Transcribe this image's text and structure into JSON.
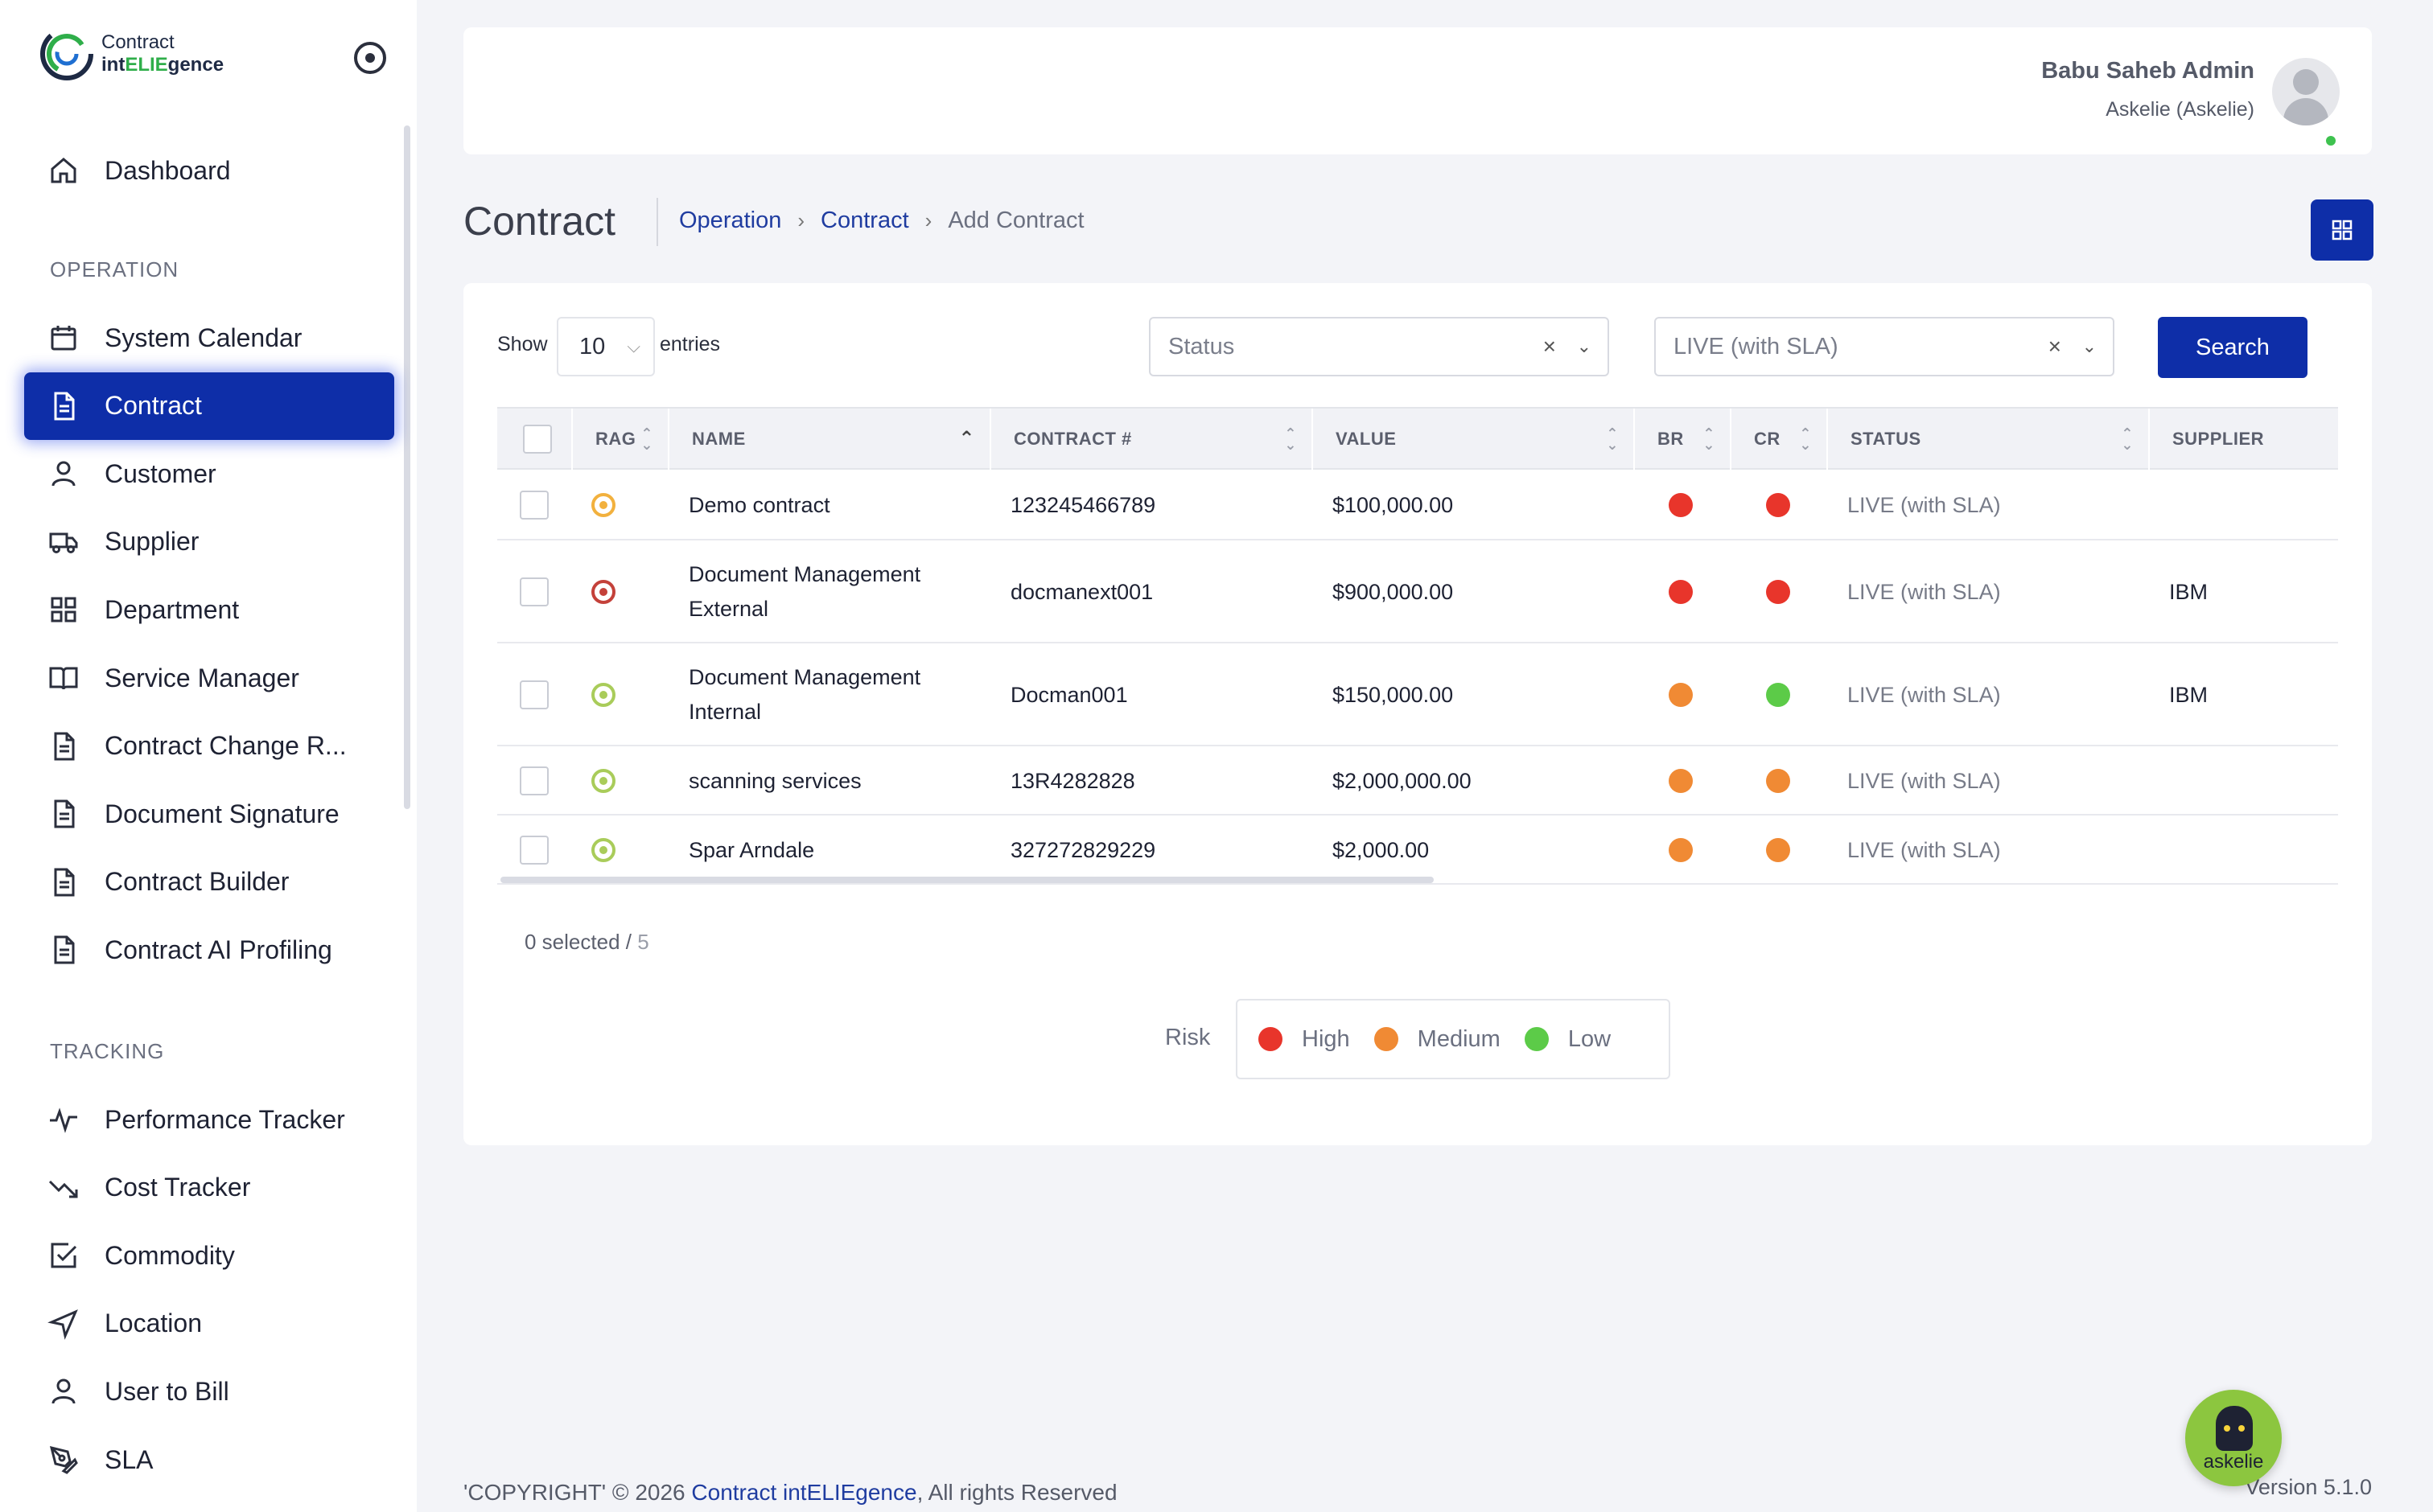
{
  "app": {
    "logo_line1": "Contract",
    "logo_line2_pre": "int",
    "logo_line2_acc": "ELIE",
    "logo_line2_post": "gence"
  },
  "sidebar": {
    "dashboard": "Dashboard",
    "section_operation": "OPERATION",
    "operation_items": [
      {
        "label": "System Calendar",
        "icon": "calendar-icon"
      },
      {
        "label": "Contract",
        "icon": "document-icon",
        "active": true
      },
      {
        "label": "Customer",
        "icon": "user-icon"
      },
      {
        "label": "Supplier",
        "icon": "truck-icon"
      },
      {
        "label": "Department",
        "icon": "grid-icon"
      },
      {
        "label": "Service Manager",
        "icon": "book-icon"
      },
      {
        "label": "Contract Change R...",
        "icon": "document-icon"
      },
      {
        "label": "Document Signature",
        "icon": "document-icon"
      },
      {
        "label": "Contract Builder",
        "icon": "document-icon"
      },
      {
        "label": "Contract AI Profiling",
        "icon": "document-icon"
      }
    ],
    "section_tracking": "TRACKING",
    "tracking_items": [
      {
        "label": "Performance Tracker",
        "icon": "activity-icon"
      },
      {
        "label": "Cost Tracker",
        "icon": "trending-down-icon"
      },
      {
        "label": "Commodity",
        "icon": "check-square-icon"
      },
      {
        "label": "Location",
        "icon": "navigation-icon"
      },
      {
        "label": "User to Bill",
        "icon": "user-icon"
      },
      {
        "label": "SLA",
        "icon": "pen-tool-icon"
      }
    ]
  },
  "header": {
    "user_name": "Babu Saheb Admin",
    "user_org": "Askelie (Askelie)"
  },
  "page": {
    "title": "Contract",
    "breadcrumb": [
      "Operation",
      "Contract",
      "Add Contract"
    ]
  },
  "filters": {
    "show_label": "Show",
    "entries_value": "10",
    "entries_label": "entries",
    "status_placeholder": "Status",
    "status_clear": "×",
    "live_value": "LIVE (with SLA)",
    "live_clear": "×",
    "search_label": "Search"
  },
  "table": {
    "headers": [
      "RAG",
      "NAME",
      "CONTRACT #",
      "VALUE",
      "BR",
      "CR",
      "STATUS",
      "SUPPLIER"
    ],
    "rows": [
      {
        "rag": "amber",
        "name": "Demo contract",
        "contract_no": "123245466789",
        "value": "$100,000.00",
        "br": "high",
        "cr": "high",
        "status": "LIVE (with SLA)",
        "supplier": ""
      },
      {
        "rag": "red",
        "name": "Document Management External",
        "contract_no": "docmanext001",
        "value": "$900,000.00",
        "br": "high",
        "cr": "high",
        "status": "LIVE (with SLA)",
        "supplier": "IBM"
      },
      {
        "rag": "green",
        "name": "Document Management Internal",
        "contract_no": "Docman001",
        "value": "$150,000.00",
        "br": "medium",
        "cr": "low",
        "status": "LIVE (with SLA)",
        "supplier": "IBM"
      },
      {
        "rag": "green",
        "name": "scanning services",
        "contract_no": "13R4282828",
        "value": "$2,000,000.00",
        "br": "medium",
        "cr": "medium",
        "status": "LIVE (with SLA)",
        "supplier": ""
      },
      {
        "rag": "green",
        "name": "Spar Arndale",
        "contract_no": "327272829229",
        "value": "$2,000.00",
        "br": "medium",
        "cr": "medium",
        "status": "LIVE (with SLA)",
        "supplier": ""
      }
    ],
    "selected_text": "0 selected /",
    "total_text": " 5"
  },
  "legend": {
    "title": "Risk",
    "items": [
      {
        "label": "High",
        "color": "#e8352b"
      },
      {
        "label": "Medium",
        "color": "#f08a34"
      },
      {
        "label": "Low",
        "color": "#5ccb48"
      }
    ]
  },
  "colors": {
    "accent": "#0e2ea8",
    "high": "#e8352b",
    "medium": "#f08a34",
    "low": "#5ccb48",
    "rag_amber": "#f2b13e",
    "rag_red": "#c4413a",
    "rag_green": "#a9cc5a"
  },
  "footer": {
    "copyright_pre": "'COPYRIGHT' © 2026 ",
    "copyright_link": "Contract intELIEgence",
    "copyright_post": ", All rights Reserved",
    "version": "Version 5.1.0"
  },
  "chatbot": {
    "label": "askelie"
  }
}
